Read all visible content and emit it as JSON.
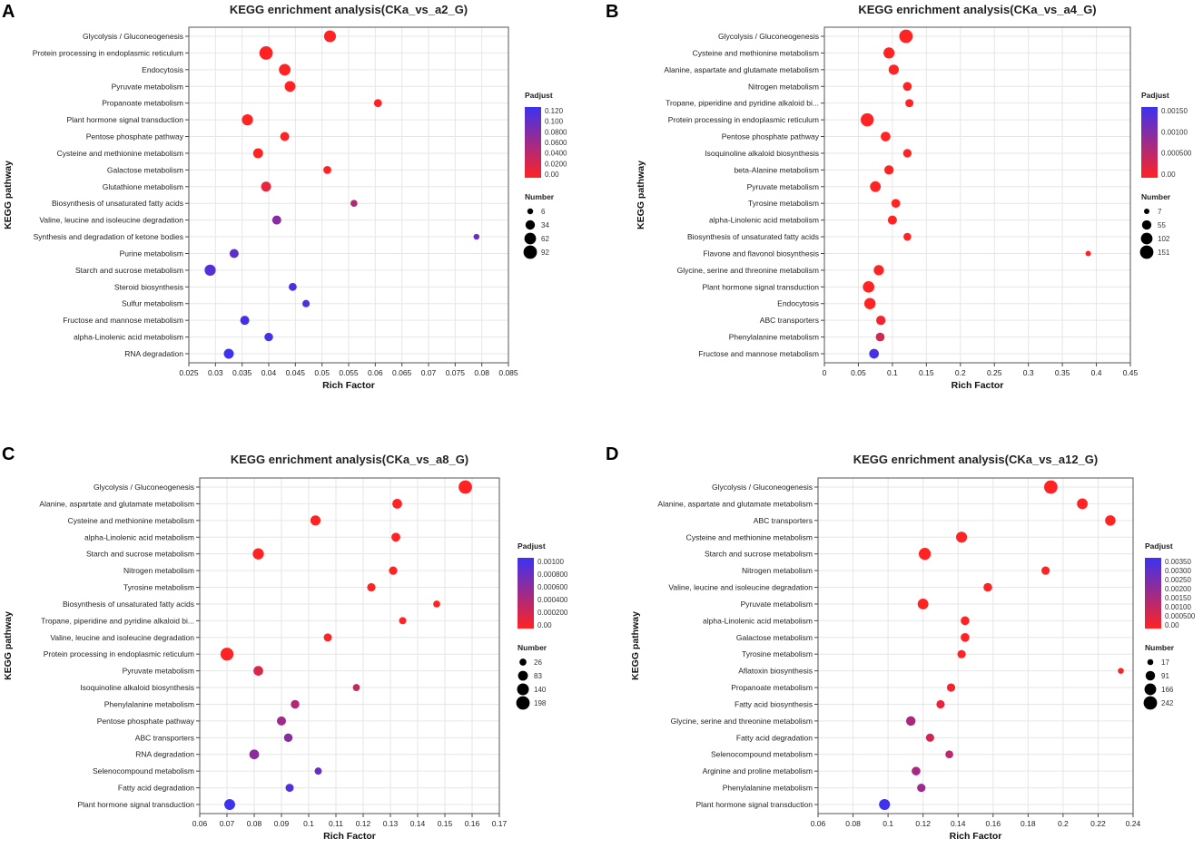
{
  "panel_labels": [
    "A",
    "B",
    "C",
    "D"
  ],
  "chart_data": [
    {
      "type": "scatter",
      "panel": "A",
      "title": "KEGG enrichment analysis(CKa_vs_a2_G)",
      "xlabel": "Rich Factor",
      "ylabel": "KEGG pathway",
      "xlim": [
        0.025,
        0.085
      ],
      "xticks": [
        "0.025",
        "0.03",
        "0.035",
        "0.04",
        "0.045",
        "0.05",
        "0.055",
        "0.06",
        "0.065",
        "0.07",
        "0.075",
        "0.08",
        "0.085"
      ],
      "grid": true,
      "legend_position": "right",
      "color_legend": {
        "title": "Padjust",
        "min": 0.0,
        "max": 0.12,
        "labels": [
          "0.120",
          "0.100",
          "0.0800",
          "0.0600",
          "0.0400",
          "0.0200",
          "0.00"
        ]
      },
      "size_legend": {
        "title": "Number",
        "values": [
          6,
          34,
          62,
          92
        ],
        "labels": [
          "6",
          "34",
          "62",
          "92"
        ]
      },
      "categories": [
        "Glycolysis / Gluconeogenesis",
        "Protein processing in endoplasmic reticulum",
        "Endocytosis",
        "Pyruvate metabolism",
        "Propanoate metabolism",
        "Plant hormone signal transduction",
        "Pentose phosphate pathway",
        "Cysteine and methionine metabolism",
        "Galactose metabolism",
        "Glutathione metabolism",
        "Biosynthesis of unsaturated fatty acids",
        "Valine, leucine and isoleucine degradation",
        "Synthesis and degradation of ketone bodies",
        "Purine metabolism",
        "Starch and sucrose metabolism",
        "Steroid biosynthesis",
        "Sulfur metabolism",
        "Fructose and mannose metabolism",
        "alpha-Linolenic acid metabolism",
        "RNA degradation"
      ],
      "x": [
        0.0515,
        0.0395,
        0.043,
        0.044,
        0.0605,
        0.036,
        0.043,
        0.038,
        0.051,
        0.0395,
        0.056,
        0.0415,
        0.079,
        0.0335,
        0.029,
        0.0445,
        0.047,
        0.0355,
        0.04,
        0.0325
      ],
      "number": [
        66,
        92,
        62,
        50,
        20,
        55,
        30,
        40,
        20,
        40,
        12,
        30,
        6,
        30,
        55,
        20,
        15,
        30,
        25,
        40
      ],
      "padjust": [
        0.0,
        0.0,
        0.0,
        0.0,
        0.0,
        0.0,
        0.0,
        0.0,
        0.0,
        0.015,
        0.05,
        0.075,
        0.09,
        0.1,
        0.105,
        0.11,
        0.11,
        0.115,
        0.115,
        0.12
      ]
    },
    {
      "type": "scatter",
      "panel": "B",
      "title": "KEGG enrichment analysis(CKa_vs_a4_G)",
      "xlabel": "Rich Factor",
      "ylabel": "KEGG pathway",
      "xlim": [
        0,
        0.45
      ],
      "xticks": [
        "0",
        "0.05",
        "0.1",
        "0.15",
        "0.2",
        "0.25",
        "0.3",
        "0.35",
        "0.4",
        "0.45"
      ],
      "grid": true,
      "legend_position": "right",
      "color_legend": {
        "title": "Padjust",
        "min": 0.0,
        "max": 0.0018,
        "labels": [
          "0.00150",
          "0.00100",
          "0.000500",
          "0.00"
        ]
      },
      "size_legend": {
        "title": "Number",
        "values": [
          7,
          55,
          102,
          151
        ],
        "labels": [
          "7",
          "55",
          "102",
          "151"
        ]
      },
      "categories": [
        "Glycolysis / Gluconeogenesis",
        "Cysteine and methionine metabolism",
        "Alanine, aspartate and glutamate metabolism",
        "Nitrogen metabolism",
        "Tropane, piperidine and pyridine alkaloid bi...",
        "Protein processing in endoplasmic reticulum",
        "Pentose phosphate pathway",
        "Isoquinoline alkaloid biosynthesis",
        "beta-Alanine metabolism",
        "Pyruvate metabolism",
        "Tyrosine metabolism",
        "alpha-Linolenic acid metabolism",
        "Biosynthesis of unsaturated fatty acids",
        "Flavone and flavonol biosynthesis",
        "Glycine, serine and threonine metabolism",
        "Plant hormone signal transduction",
        "Endocytosis",
        "ABC transporters",
        "Phenylalanine metabolism",
        "Fructose and mannose metabolism"
      ],
      "x": [
        0.12,
        0.095,
        0.102,
        0.122,
        0.125,
        0.063,
        0.09,
        0.122,
        0.095,
        0.075,
        0.105,
        0.1,
        0.122,
        0.388,
        0.08,
        0.065,
        0.067,
        0.083,
        0.082,
        0.073
      ],
      "number": [
        151,
        90,
        70,
        45,
        35,
        140,
        60,
        40,
        55,
        80,
        45,
        50,
        30,
        7,
        70,
        100,
        95,
        55,
        45,
        60
      ],
      "padjust": [
        0.0,
        0.0,
        0.0,
        0.0,
        0.0,
        0.0,
        0.0,
        0.0,
        0.0,
        0.0,
        0.0,
        0.0,
        0.0,
        0.0,
        0.0,
        0.0,
        0.0,
        0.0001,
        0.0004,
        0.0017
      ]
    },
    {
      "type": "scatter",
      "panel": "C",
      "title": "KEGG enrichment analysis(CKa_vs_a8_G)",
      "xlabel": "Rich Factor",
      "ylabel": "KEGG pathway",
      "xlim": [
        0.06,
        0.17
      ],
      "xticks": [
        "0.06",
        "0.07",
        "0.08",
        "0.09",
        "0.1",
        "0.11",
        "0.12",
        "0.13",
        "0.14",
        "0.15",
        "0.16",
        "0.17"
      ],
      "grid": true,
      "legend_position": "right",
      "color_legend": {
        "title": "Padjust",
        "min": 0.0,
        "max": 0.001,
        "labels": [
          "0.00100",
          "0.000800",
          "0.000600",
          "0.000400",
          "0.000200",
          "0.00"
        ]
      },
      "size_legend": {
        "title": "Number",
        "values": [
          26,
          83,
          140,
          198
        ],
        "labels": [
          "26",
          "83",
          "140",
          "198"
        ]
      },
      "categories": [
        "Glycolysis / Gluconeogenesis",
        "Alanine, aspartate and glutamate metabolism",
        "Cysteine and methionine metabolism",
        "alpha-Linolenic acid metabolism",
        "Starch and sucrose metabolism",
        "Nitrogen metabolism",
        "Tyrosine metabolism",
        "Biosynthesis of unsaturated fatty acids",
        "Tropane, piperidine and pyridine alkaloid bi...",
        "Valine, leucine and isoleucine degradation",
        "Protein processing in endoplasmic reticulum",
        "Pyruvate metabolism",
        "Isoquinoline alkaloid biosynthesis",
        "Phenylalanine metabolism",
        "Pentose phosphate pathway",
        "ABC transporters",
        "RNA degradation",
        "Selenocompound metabolism",
        "Fatty acid degradation",
        "Plant hormone signal transduction"
      ],
      "x": [
        0.1575,
        0.1325,
        0.1025,
        0.132,
        0.0815,
        0.131,
        0.123,
        0.147,
        0.1345,
        0.107,
        0.07,
        0.0815,
        0.1175,
        0.095,
        0.09,
        0.0925,
        0.08,
        0.1035,
        0.093,
        0.071
      ],
      "number": [
        198,
        80,
        90,
        60,
        120,
        50,
        50,
        26,
        30,
        45,
        180,
        80,
        28,
        55,
        65,
        55,
        80,
        30,
        45,
        110
      ],
      "padjust": [
        0.0,
        0.0,
        0.0,
        0.0,
        0.0,
        0.0,
        0.0,
        0.0,
        0.0,
        0.0,
        0.0,
        0.0002,
        0.0003,
        0.0004,
        0.0005,
        0.0006,
        0.0006,
        0.0008,
        0.0009,
        0.001
      ]
    },
    {
      "type": "scatter",
      "panel": "D",
      "title": "KEGG enrichment analysis(CKa_vs_a12_G)",
      "xlabel": "Rich Factor",
      "ylabel": "KEGG pathway",
      "xlim": [
        0.06,
        0.24
      ],
      "xticks": [
        "0.06",
        "0.08",
        "0.1",
        "0.12",
        "0.14",
        "0.16",
        "0.18",
        "0.2",
        "0.22",
        "0.24"
      ],
      "grid": true,
      "legend_position": "right",
      "color_legend": {
        "title": "Padjust",
        "min": 0.0,
        "max": 0.0035,
        "labels": [
          "0.00350",
          "0.00300",
          "0.00250",
          "0.00200",
          "0.00150",
          "0.00100",
          "0.000500",
          "0.00"
        ]
      },
      "size_legend": {
        "title": "Number",
        "values": [
          17,
          91,
          166,
          242
        ],
        "labels": [
          "17",
          "91",
          "166",
          "242"
        ]
      },
      "categories": [
        "Glycolysis / Gluconeogenesis",
        "Alanine, aspartate and glutamate metabolism",
        "ABC transporters",
        "Cysteine and methionine metabolism",
        "Starch and sucrose metabolism",
        "Nitrogen metabolism",
        "Valine, leucine and isoleucine degradation",
        "Pyruvate metabolism",
        "alpha-Linolenic acid metabolism",
        "Galactose metabolism",
        "Tyrosine metabolism",
        "Aflatoxin biosynthesis",
        "Propanoate metabolism",
        "Fatty acid biosynthesis",
        "Glycine, serine and threonine metabolism",
        "Fatty acid degradation",
        "Selenocompound metabolism",
        "Arginine and proline metabolism",
        "Phenylalanine metabolism",
        "Plant hormone signal transduction"
      ],
      "x": [
        0.193,
        0.211,
        0.227,
        0.142,
        0.121,
        0.19,
        0.157,
        0.12,
        0.144,
        0.144,
        0.142,
        0.233,
        0.136,
        0.13,
        0.113,
        0.124,
        0.135,
        0.116,
        0.119,
        0.098
      ],
      "number": [
        242,
        130,
        120,
        140,
        180,
        60,
        70,
        130,
        70,
        70,
        60,
        17,
        60,
        60,
        90,
        60,
        50,
        70,
        60,
        140
      ],
      "padjust": [
        0.0,
        0.0,
        0.0,
        0.0,
        0.0,
        0.0,
        0.0,
        0.0,
        0.0,
        0.0,
        0.0,
        0.0,
        0.0002,
        0.0004,
        0.0015,
        0.0008,
        0.0012,
        0.0016,
        0.0018,
        0.0035
      ]
    }
  ]
}
